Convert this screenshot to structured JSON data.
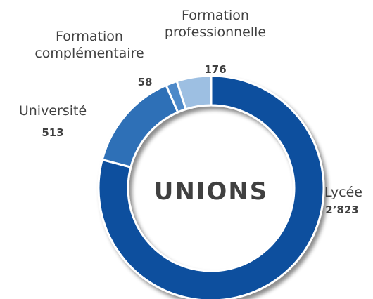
{
  "chart_data": {
    "type": "donut",
    "center_label": "UNIONS",
    "categories": [
      "Lycée",
      "Université",
      "Formation complémentaire",
      "Formation professionnelle"
    ],
    "values": [
      2823,
      513,
      58,
      176
    ],
    "value_labels": [
      "2’823",
      "513",
      "58",
      "176"
    ],
    "colors": [
      "#0b4f9e",
      "#2f6fb7",
      "#4d89c9",
      "#9dbfe2"
    ]
  }
}
